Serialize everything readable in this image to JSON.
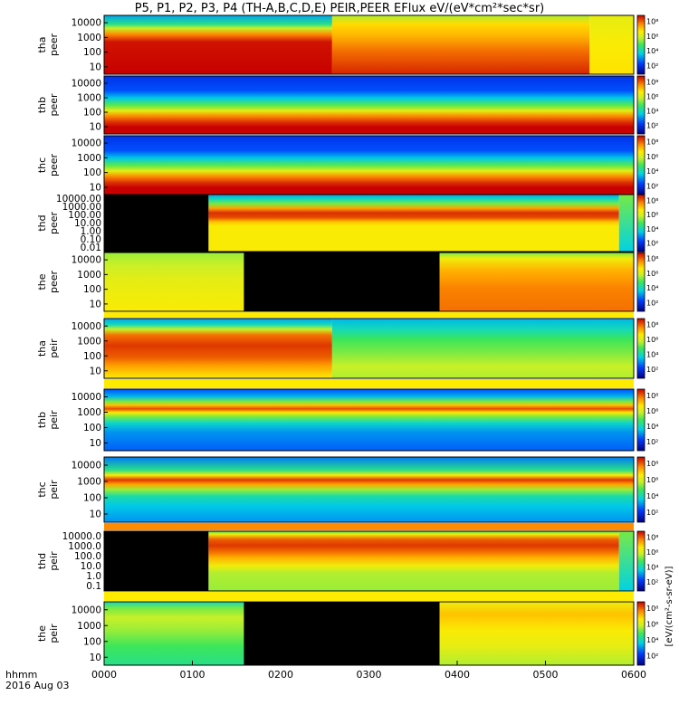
{
  "chart_data": {
    "type": "heatmap",
    "title": "P5, P1, P2, P3, P4 (TH-A,B,C,D,E) PEIR,PEER EFlux eV/(eV*cm²*sec*sr)",
    "x_label_line1": "hhmm",
    "x_label_line2": "2016 Aug 03",
    "x_ticks": [
      "0000",
      "0100",
      "0200",
      "0300",
      "0400",
      "0500",
      "0600"
    ],
    "x_range_minutes": [
      0,
      360
    ],
    "colorbar_label": "[eV/(cm²-s-sr-eV)]",
    "colorbar_ticks": [
      "10²",
      "10⁴",
      "10⁶",
      "10⁸"
    ],
    "panels": [
      {
        "label_top": "tha",
        "label_bottom": "peer",
        "yticks": [
          "10000",
          "1000",
          "100",
          "10"
        ],
        "log_min": 0.7,
        "log_max": 4.5,
        "segments": [
          {
            "start": 0,
            "end": 155,
            "profile": "tha_peer_early"
          },
          {
            "start": 155,
            "end": 330,
            "profile": "tha_peer_late"
          },
          {
            "start": 330,
            "end": 360,
            "profile": "tha_peer_tail"
          }
        ]
      },
      {
        "label_top": "thb",
        "label_bottom": "peer",
        "yticks": [
          "10000",
          "1000",
          "100",
          "10"
        ],
        "log_min": 0.95,
        "log_max": 4.2,
        "segments": [
          {
            "start": 0,
            "end": 360,
            "profile": "hot_low"
          }
        ]
      },
      {
        "label_top": "thc",
        "label_bottom": "peer",
        "yticks": [
          "10000",
          "1000",
          "100",
          "10"
        ],
        "log_min": 0.95,
        "log_max": 4.2,
        "segments": [
          {
            "start": 0,
            "end": 360,
            "profile": "hot_low"
          }
        ]
      },
      {
        "label_top": "thd",
        "label_bottom": "peer",
        "yticks": [
          "10000.00",
          "1000.00",
          "100.00",
          "10.00",
          "1.00",
          "0.10",
          "0.01"
        ],
        "log_min": -2,
        "log_max": 4.4,
        "segments": [
          {
            "start": 0,
            "end": 71,
            "profile": "nodata"
          },
          {
            "start": 71,
            "end": 350,
            "profile": "thd_peer"
          },
          {
            "start": 350,
            "end": 360,
            "profile": "thd_tail"
          }
        ]
      },
      {
        "label_top": "the",
        "label_bottom": "peer",
        "yticks": [
          "10000",
          "1000",
          "100",
          "10"
        ],
        "log_min": 0.7,
        "log_max": 4.45,
        "segments": [
          {
            "start": 0,
            "end": 95,
            "profile": "the_peer_early"
          },
          {
            "start": 95,
            "end": 228,
            "profile": "nodata"
          },
          {
            "start": 228,
            "end": 360,
            "profile": "the_peer_late"
          }
        ]
      },
      {
        "label_top": "tha",
        "label_bottom": "peir",
        "yticks": [
          "10000",
          "1000",
          "100",
          "10"
        ],
        "log_min": 0.7,
        "log_max": 4.45,
        "segments": [
          {
            "start": 0,
            "end": 155,
            "profile": "tha_peir_early"
          },
          {
            "start": 155,
            "end": 360,
            "profile": "tha_peir_late"
          }
        ]
      },
      {
        "label_top": "thb",
        "label_bottom": "peir",
        "yticks": [
          "10000",
          "1000",
          "100",
          "10"
        ],
        "log_min": 0.75,
        "log_max": 4.45,
        "segments": [
          {
            "start": 0,
            "end": 360,
            "profile": "ion_band"
          }
        ]
      },
      {
        "label_top": "thc",
        "label_bottom": "peir",
        "yticks": [
          "10000",
          "1000",
          "100",
          "10"
        ],
        "log_min": 0.7,
        "log_max": 4.45,
        "segments": [
          {
            "start": 0,
            "end": 360,
            "profile": "ion_band_c"
          }
        ]
      },
      {
        "label_top": "thd",
        "label_bottom": "peir",
        "yticks": [
          "10000.0",
          "1000.0",
          "100.0",
          "10.0",
          "1.0",
          "0.1"
        ],
        "log_min": -1.2,
        "log_max": 4.4,
        "segments": [
          {
            "start": 0,
            "end": 71,
            "profile": "nodata"
          },
          {
            "start": 71,
            "end": 350,
            "profile": "thd_peir"
          },
          {
            "start": 350,
            "end": 360,
            "profile": "thd_tail"
          }
        ]
      },
      {
        "label_top": "the",
        "label_bottom": "peir",
        "yticks": [
          "10000",
          "1000",
          "100",
          "10"
        ],
        "log_min": 0.7,
        "log_max": 4.45,
        "segments": [
          {
            "start": 0,
            "end": 95,
            "profile": "the_peir_early"
          },
          {
            "start": 95,
            "end": 228,
            "profile": "nodata"
          },
          {
            "start": 228,
            "end": 360,
            "profile": "the_peir_late"
          }
        ]
      }
    ]
  }
}
